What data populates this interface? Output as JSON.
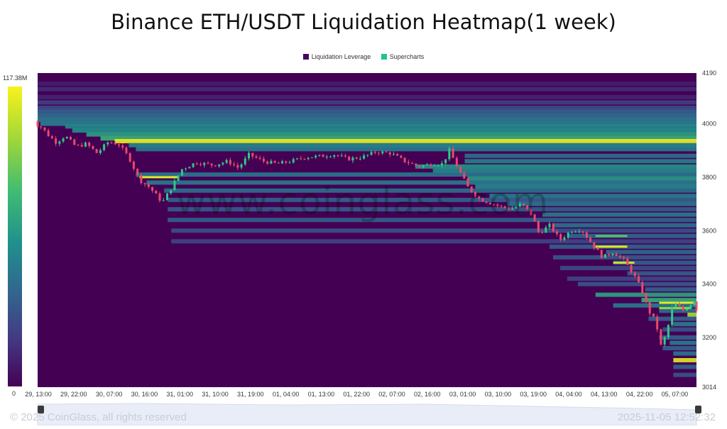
{
  "chart_data": {
    "type": "heatmap",
    "title": "Binance ETH/USDT Liquidation Heatmap(1 week)",
    "legend": [
      {
        "name": "Liquidation Leverage",
        "color": "#44085a"
      },
      {
        "name": "Supercharts",
        "color": "#22c389"
      }
    ],
    "colorscale": {
      "min_label": "0",
      "max_label": "117.38M",
      "colors": [
        "#440154",
        "#443a83",
        "#30688e",
        "#21908d",
        "#3fbc73",
        "#9ed63a",
        "#f9f21d"
      ]
    },
    "x_tick_labels": [
      "29, 13:00",
      "29, 22:00",
      "30, 07:00",
      "30, 16:00",
      "31, 01:00",
      "31, 10:00",
      "31, 19:00",
      "01, 04:00",
      "01, 13:00",
      "01, 22:00",
      "02, 07:00",
      "02, 16:00",
      "03, 01:00",
      "03, 10:00",
      "03, 19:00",
      "04, 04:00",
      "04, 13:00",
      "04, 22:00",
      "05, 07:00"
    ],
    "y_tick_labels": [
      "4190",
      "4000",
      "3800",
      "3600",
      "3400",
      "3200",
      "3014"
    ],
    "ylim": [
      3014,
      4190
    ],
    "price_path": [
      {
        "x": 0.0,
        "y": 4010
      },
      {
        "x": 0.35,
        "y": 3985
      },
      {
        "x": 0.5,
        "y": 3960
      },
      {
        "x": 0.75,
        "y": 3930
      },
      {
        "x": 1.0,
        "y": 3955
      },
      {
        "x": 1.3,
        "y": 3915
      },
      {
        "x": 1.6,
        "y": 3925
      },
      {
        "x": 1.9,
        "y": 3890
      },
      {
        "x": 2.2,
        "y": 3930
      },
      {
        "x": 2.5,
        "y": 3925
      },
      {
        "x": 2.8,
        "y": 3875
      },
      {
        "x": 3.1,
        "y": 3790
      },
      {
        "x": 3.4,
        "y": 3760
      },
      {
        "x": 3.75,
        "y": 3705
      },
      {
        "x": 4.0,
        "y": 3760
      },
      {
        "x": 4.3,
        "y": 3830
      },
      {
        "x": 4.7,
        "y": 3855
      },
      {
        "x": 5.2,
        "y": 3845
      },
      {
        "x": 5.6,
        "y": 3860
      },
      {
        "x": 5.9,
        "y": 3835
      },
      {
        "x": 6.2,
        "y": 3885
      },
      {
        "x": 6.6,
        "y": 3860
      },
      {
        "x": 7.0,
        "y": 3850
      },
      {
        "x": 7.4,
        "y": 3860
      },
      {
        "x": 7.8,
        "y": 3875
      },
      {
        "x": 8.2,
        "y": 3878
      },
      {
        "x": 8.6,
        "y": 3885
      },
      {
        "x": 9.0,
        "y": 3868
      },
      {
        "x": 9.4,
        "y": 3875
      },
      {
        "x": 9.8,
        "y": 3895
      },
      {
        "x": 10.2,
        "y": 3890
      },
      {
        "x": 10.6,
        "y": 3860
      },
      {
        "x": 11.0,
        "y": 3840
      },
      {
        "x": 11.4,
        "y": 3850
      },
      {
        "x": 11.7,
        "y": 3850
      },
      {
        "x": 11.85,
        "y": 3905
      },
      {
        "x": 12.1,
        "y": 3835
      },
      {
        "x": 12.4,
        "y": 3760
      },
      {
        "x": 12.7,
        "y": 3720
      },
      {
        "x": 13.0,
        "y": 3705
      },
      {
        "x": 13.3,
        "y": 3690
      },
      {
        "x": 13.6,
        "y": 3680
      },
      {
        "x": 13.9,
        "y": 3700
      },
      {
        "x": 14.2,
        "y": 3660
      },
      {
        "x": 14.4,
        "y": 3590
      },
      {
        "x": 14.7,
        "y": 3620
      },
      {
        "x": 15.0,
        "y": 3565
      },
      {
        "x": 15.3,
        "y": 3600
      },
      {
        "x": 15.6,
        "y": 3605
      },
      {
        "x": 15.9,
        "y": 3550
      },
      {
        "x": 16.2,
        "y": 3500
      },
      {
        "x": 16.5,
        "y": 3520
      },
      {
        "x": 16.8,
        "y": 3490
      },
      {
        "x": 17.1,
        "y": 3430
      },
      {
        "x": 17.3,
        "y": 3380
      },
      {
        "x": 17.5,
        "y": 3300
      },
      {
        "x": 17.7,
        "y": 3260
      },
      {
        "x": 17.85,
        "y": 3170
      },
      {
        "x": 18.0,
        "y": 3210
      },
      {
        "x": 18.2,
        "y": 3330
      },
      {
        "x": 18.5,
        "y": 3300
      },
      {
        "x": 18.8,
        "y": 3340
      },
      {
        "x": 19.1,
        "y": 3325
      },
      {
        "x": 19.4,
        "y": 3320
      },
      {
        "x": 19.7,
        "y": 3305
      },
      {
        "x": 19.95,
        "y": 3290
      }
    ],
    "liquidation_levels": [
      {
        "price": 4150,
        "x_start": 0.0,
        "intensity": 0.08
      },
      {
        "price": 4130,
        "x_start": 0.0,
        "intensity": 0.12
      },
      {
        "price": 4100,
        "x_start": 0.0,
        "intensity": 0.1
      },
      {
        "price": 4080,
        "x_start": 0.0,
        "intensity": 0.18
      },
      {
        "price": 4060,
        "x_start": 0.0,
        "intensity": 0.22
      },
      {
        "price": 4045,
        "x_start": 0.0,
        "intensity": 0.3
      },
      {
        "price": 4030,
        "x_start": 0.0,
        "intensity": 0.35
      },
      {
        "price": 4015,
        "x_start": 0.0,
        "intensity": 0.4
      },
      {
        "price": 4000,
        "x_start": 0.3,
        "intensity": 0.42
      },
      {
        "price": 3990,
        "x_start": 1.0,
        "intensity": 0.45
      },
      {
        "price": 3975,
        "x_start": 1.2,
        "intensity": 0.48
      },
      {
        "price": 3960,
        "x_start": 1.6,
        "intensity": 0.55
      },
      {
        "price": 3945,
        "x_start": 2.0,
        "intensity": 0.62
      },
      {
        "price": 3935,
        "x_start": 2.4,
        "intensity": 0.98
      },
      {
        "price": 3920,
        "x_start": 2.8,
        "intensity": 0.45
      },
      {
        "price": 3905,
        "x_start": 3.0,
        "intensity": 0.4
      },
      {
        "price": 3880,
        "x_start": 12.3,
        "intensity": 0.35
      },
      {
        "price": 3860,
        "x_start": 12.3,
        "intensity": 0.42
      },
      {
        "price": 3840,
        "x_start": 10.9,
        "intensity": 0.5
      },
      {
        "price": 3825,
        "x_start": 11.4,
        "intensity": 0.45
      },
      {
        "price": 3810,
        "x_start": 3.0,
        "intensity": 0.38
      },
      {
        "price": 3795,
        "x_start": 12.4,
        "intensity": 0.52
      },
      {
        "price": 3780,
        "x_start": 3.3,
        "intensity": 0.4
      },
      {
        "price": 3765,
        "x_start": 12.6,
        "intensity": 0.45
      },
      {
        "price": 3750,
        "x_start": 3.8,
        "intensity": 0.35
      },
      {
        "price": 3730,
        "x_start": 13.0,
        "intensity": 0.42
      },
      {
        "price": 3715,
        "x_start": 3.9,
        "intensity": 0.3
      },
      {
        "price": 3700,
        "x_start": 13.5,
        "intensity": 0.38
      },
      {
        "price": 3680,
        "x_start": 3.9,
        "intensity": 0.28
      },
      {
        "price": 3660,
        "x_start": 14.5,
        "intensity": 0.4
      },
      {
        "price": 3640,
        "x_start": 3.9,
        "intensity": 0.3
      },
      {
        "price": 3620,
        "x_start": 14.8,
        "intensity": 0.36
      },
      {
        "price": 3600,
        "x_start": 4.0,
        "intensity": 0.24
      },
      {
        "price": 3580,
        "x_start": 15.2,
        "intensity": 0.32
      },
      {
        "price": 3560,
        "x_start": 4.0,
        "intensity": 0.2
      },
      {
        "price": 3540,
        "x_start": 14.7,
        "intensity": 0.3
      },
      {
        "price": 3520,
        "x_start": 16.3,
        "intensity": 0.33
      },
      {
        "price": 3500,
        "x_start": 14.8,
        "intensity": 0.26
      },
      {
        "price": 3480,
        "x_start": 16.5,
        "intensity": 0.3
      },
      {
        "price": 3460,
        "x_start": 15.0,
        "intensity": 0.22
      },
      {
        "price": 3440,
        "x_start": 16.9,
        "intensity": 0.28
      },
      {
        "price": 3420,
        "x_start": 15.2,
        "intensity": 0.2
      },
      {
        "price": 3400,
        "x_start": 15.5,
        "intensity": 0.26
      },
      {
        "price": 3380,
        "x_start": 17.4,
        "intensity": 0.3
      },
      {
        "price": 3360,
        "x_start": 16.0,
        "intensity": 0.55
      },
      {
        "price": 3340,
        "x_start": 17.3,
        "intensity": 0.6
      },
      {
        "price": 3320,
        "x_start": 16.5,
        "intensity": 0.4
      },
      {
        "price": 3300,
        "x_start": 17.8,
        "intensity": 0.35
      },
      {
        "price": 3285,
        "x_start": 18.6,
        "intensity": 0.85
      },
      {
        "price": 3270,
        "x_start": 17.5,
        "intensity": 0.3
      },
      {
        "price": 3250,
        "x_start": 18.2,
        "intensity": 0.4
      },
      {
        "price": 3230,
        "x_start": 17.9,
        "intensity": 0.25
      },
      {
        "price": 3200,
        "x_start": 17.8,
        "intensity": 0.3
      },
      {
        "price": 3180,
        "x_start": 18.1,
        "intensity": 0.4
      },
      {
        "price": 3160,
        "x_start": 17.9,
        "intensity": 0.3
      },
      {
        "price": 3140,
        "x_start": 18.2,
        "intensity": 0.38
      },
      {
        "price": 3115,
        "x_start": 18.2,
        "intensity": 0.95
      },
      {
        "price": 3090,
        "x_start": 18.2,
        "intensity": 0.3
      },
      {
        "price": 3060,
        "x_start": 18.2,
        "intensity": 0.25
      }
    ],
    "short_segments": [
      {
        "price": 3800,
        "x_start": 3.1,
        "x_end": 4.2,
        "intensity": 0.95
      },
      {
        "price": 3540,
        "x_start": 16.0,
        "x_end": 16.9,
        "intensity": 0.95
      },
      {
        "price": 3580,
        "x_start": 16.0,
        "x_end": 16.9,
        "intensity": 0.7
      },
      {
        "price": 3480,
        "x_start": 16.5,
        "x_end": 17.1,
        "intensity": 0.9
      },
      {
        "price": 3330,
        "x_start": 17.8,
        "x_end": 18.9,
        "intensity": 0.95
      },
      {
        "price": 3310,
        "x_start": 17.8,
        "x_end": 18.7,
        "intensity": 0.8
      }
    ]
  },
  "watermark": "www.coinglass.com",
  "footer": {
    "copyright": "© 2025 CoinGlass, all rights reserved",
    "timestamp": "2025-11-05 12:52:32"
  },
  "navigator": {
    "left_handle": "⏸",
    "right_handle": "⏸"
  }
}
